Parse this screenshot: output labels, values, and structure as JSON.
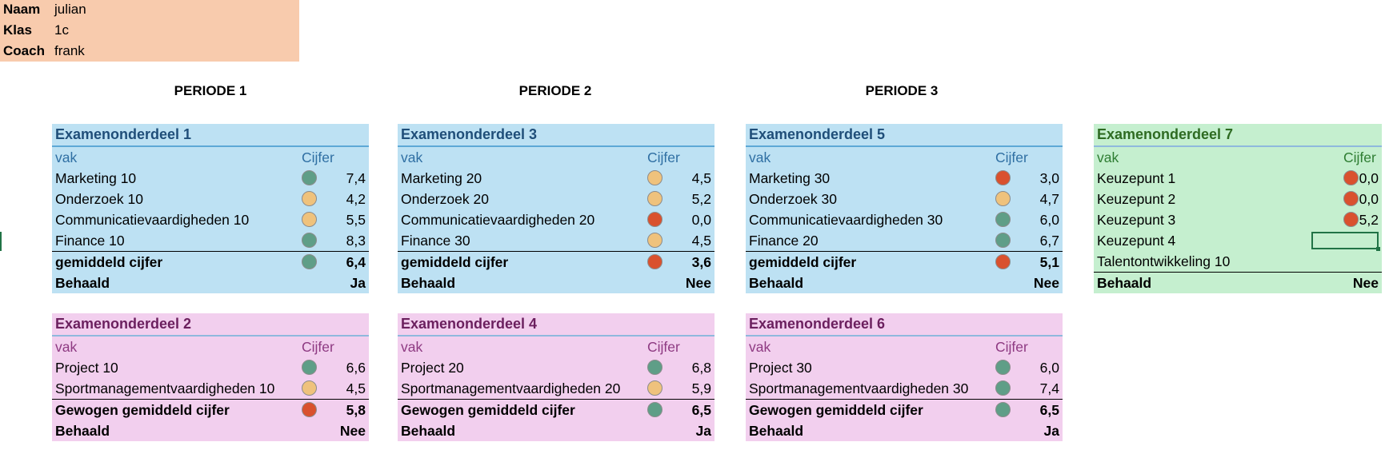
{
  "student": {
    "rows": [
      {
        "key": "Naam",
        "value": "julian"
      },
      {
        "key": "Klas",
        "value": "1c"
      },
      {
        "key": "Coach",
        "value": "frank"
      }
    ]
  },
  "periods": [
    "PERIODE 1",
    "PERIODE 2",
    "PERIODE 3"
  ],
  "colors": {
    "green": "#5f9e87",
    "orange": "#efc27c",
    "red": "#d9512e"
  },
  "boxes": [
    {
      "title": "Examenonderdeel 1",
      "theme": "blue",
      "header": {
        "vak": "vak",
        "cijfer": "Cijfer"
      },
      "rows": [
        {
          "label": "Marketing 10",
          "dot": "green",
          "value": "7,4"
        },
        {
          "label": "Onderzoek 10",
          "dot": "orange",
          "value": "4,2"
        },
        {
          "label": "Communicatievaardigheden 10",
          "dot": "orange",
          "value": "5,5"
        },
        {
          "label": "Finance 10",
          "dot": "green",
          "value": "8,3"
        }
      ],
      "average": {
        "label": "gemiddeld cijfer",
        "dot": "green",
        "value": "6,4"
      },
      "result": {
        "label": "Behaald",
        "value": "Ja"
      }
    },
    {
      "title": "Examenonderdeel 3",
      "theme": "blue",
      "header": {
        "vak": "vak",
        "cijfer": "Cijfer"
      },
      "rows": [
        {
          "label": "Marketing 20",
          "dot": "orange",
          "value": "4,5"
        },
        {
          "label": "Onderzoek 20",
          "dot": "orange",
          "value": "5,2"
        },
        {
          "label": "Communicatievaardigheden 20",
          "dot": "red",
          "value": "0,0"
        },
        {
          "label": "Finance 30",
          "dot": "orange",
          "value": "4,5"
        }
      ],
      "average": {
        "label": "gemiddeld cijfer",
        "dot": "red",
        "value": "3,6"
      },
      "result": {
        "label": "Behaald",
        "value": "Nee"
      }
    },
    {
      "title": "Examenonderdeel 5",
      "theme": "blue",
      "header": {
        "vak": "vak",
        "cijfer": "Cijfer"
      },
      "rows": [
        {
          "label": "Marketing 30",
          "dot": "red",
          "value": "3,0"
        },
        {
          "label": "Onderzoek 30",
          "dot": "orange",
          "value": "4,7"
        },
        {
          "label": "Communicatievaardigheden 30",
          "dot": "green",
          "value": "6,0"
        },
        {
          "label": "Finance 20",
          "dot": "green",
          "value": "6,7"
        }
      ],
      "average": {
        "label": "gemiddeld cijfer",
        "dot": "red",
        "value": "5,1"
      },
      "result": {
        "label": "Behaald",
        "value": "Nee"
      }
    },
    {
      "title": "Examenonderdeel 7",
      "theme": "green",
      "header": {
        "vak": "vak",
        "cijfer": "Cijfer"
      },
      "rows": [
        {
          "label": "Keuzepunt 1",
          "dot": "red",
          "value": "0,0"
        },
        {
          "label": "Keuzepunt 2",
          "dot": "red",
          "value": "0,0"
        },
        {
          "label": "Keuzepunt 3",
          "dot": "red",
          "value": "5,2"
        },
        {
          "label": "Keuzepunt 4",
          "dot": "",
          "value": ""
        },
        {
          "label": "Talentontwikkeling 10",
          "dot": "",
          "value": ""
        }
      ],
      "result": {
        "label": "Behaald",
        "value": "Nee"
      }
    },
    {
      "title": "Examenonderdeel 2",
      "theme": "pink",
      "header": {
        "vak": "vak",
        "cijfer": "Cijfer"
      },
      "rows": [
        {
          "label": "Project 10",
          "dot": "green",
          "value": "6,6"
        },
        {
          "label": "Sportmanagementvaardigheden 10",
          "dot": "orange",
          "value": "4,5"
        }
      ],
      "average": {
        "label": "Gewogen gemiddeld cijfer",
        "dot": "red",
        "value": "5,8"
      },
      "result": {
        "label": "Behaald",
        "value": "Nee"
      }
    },
    {
      "title": "Examenonderdeel 4",
      "theme": "pink",
      "header": {
        "vak": "vak",
        "cijfer": "Cijfer"
      },
      "rows": [
        {
          "label": "Project 20",
          "dot": "green",
          "value": "6,8"
        },
        {
          "label": "Sportmanagementvaardigheden 20",
          "dot": "orange",
          "value": "5,9"
        }
      ],
      "average": {
        "label": "Gewogen gemiddeld cijfer",
        "dot": "green",
        "value": "6,5"
      },
      "result": {
        "label": "Behaald",
        "value": "Ja"
      }
    },
    {
      "title": "Examenonderdeel 6",
      "theme": "pink",
      "header": {
        "vak": "vak",
        "cijfer": "Cijfer"
      },
      "rows": [
        {
          "label": "Project 30",
          "dot": "green",
          "value": "6,0"
        },
        {
          "label": "Sportmanagementvaardigheden 30",
          "dot": "green",
          "value": "7,4"
        }
      ],
      "average": {
        "label": "Gewogen gemiddeld cijfer",
        "dot": "green",
        "value": "6,5"
      },
      "result": {
        "label": "Behaald",
        "value": "Ja"
      }
    }
  ]
}
